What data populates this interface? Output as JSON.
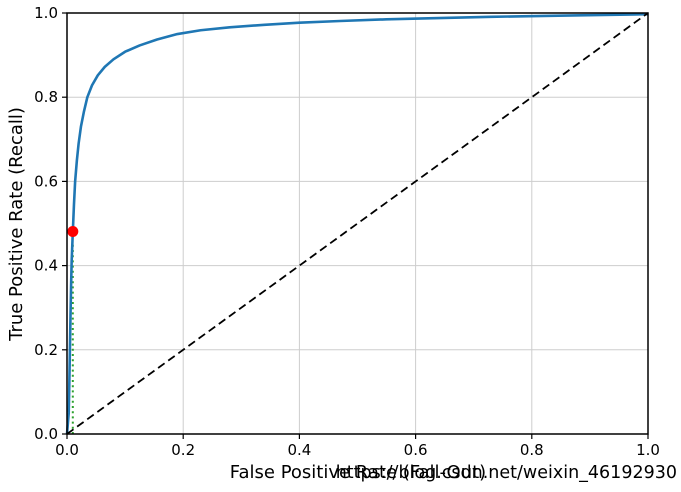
{
  "figure": {
    "background": "#ffffff",
    "watermark": {
      "text": "https://blog.csdn.net/weixin_46192930",
      "color": "#dedede"
    }
  },
  "chart_data": {
    "type": "line",
    "title": "",
    "xlabel": "False Positive Rate (Fall-Out)",
    "ylabel": "True Positive Rate (Recall)",
    "xlim": [
      0.0,
      1.0
    ],
    "ylim": [
      0.0,
      1.0
    ],
    "grid": true,
    "grid_color": "#cdcdcd",
    "spine_color": "#000000",
    "legend": "none",
    "xticks": {
      "values": [
        0.0,
        0.2,
        0.4,
        0.6,
        0.8,
        1.0
      ],
      "labels": [
        "0.0",
        "0.2",
        "0.4",
        "0.6",
        "0.8",
        "1.0"
      ]
    },
    "yticks": {
      "values": [
        0.0,
        0.2,
        0.4,
        0.6,
        0.8,
        1.0
      ],
      "labels": [
        "0.0",
        "0.2",
        "0.4",
        "0.6",
        "0.8",
        "1.0"
      ]
    },
    "series": [
      {
        "name": "threshold-vline",
        "label": "threshold vertical line",
        "color": "#2ca02c",
        "width": 2,
        "dash": "2 3.2",
        "points": [
          [
            0.01,
            0.0
          ],
          [
            0.01,
            0.455
          ]
        ]
      },
      {
        "name": "roc-curve",
        "label": "ROC curve",
        "color": "#1f77b4",
        "width": 2.6,
        "dash": null,
        "points": [
          [
            0.0,
            0.0
          ],
          [
            0.003,
            0.05
          ],
          [
            0.004,
            0.12
          ],
          [
            0.005,
            0.2
          ],
          [
            0.006,
            0.28
          ],
          [
            0.007,
            0.35
          ],
          [
            0.008,
            0.41
          ],
          [
            0.01,
            0.48
          ],
          [
            0.012,
            0.545
          ],
          [
            0.014,
            0.6
          ],
          [
            0.017,
            0.65
          ],
          [
            0.02,
            0.69
          ],
          [
            0.024,
            0.73
          ],
          [
            0.029,
            0.765
          ],
          [
            0.035,
            0.8
          ],
          [
            0.043,
            0.828
          ],
          [
            0.053,
            0.852
          ],
          [
            0.065,
            0.872
          ],
          [
            0.08,
            0.89
          ],
          [
            0.1,
            0.908
          ],
          [
            0.125,
            0.923
          ],
          [
            0.155,
            0.937
          ],
          [
            0.19,
            0.95
          ],
          [
            0.23,
            0.959
          ],
          [
            0.28,
            0.966
          ],
          [
            0.34,
            0.972
          ],
          [
            0.4,
            0.977
          ],
          [
            0.47,
            0.981
          ],
          [
            0.55,
            0.985
          ],
          [
            0.64,
            0.988
          ],
          [
            0.73,
            0.991
          ],
          [
            0.82,
            0.993
          ],
          [
            0.91,
            0.995
          ],
          [
            1.0,
            0.997
          ]
        ]
      },
      {
        "name": "random-chance-diagonal",
        "label": "random chance diagonal",
        "color": "#000000",
        "width": 1.8,
        "dash": "8 4.5",
        "points": [
          [
            0.0,
            0.0
          ],
          [
            1.0,
            1.0
          ]
        ]
      }
    ],
    "marker": {
      "name": "operating-point",
      "color": "#fe0000",
      "x": 0.01,
      "y": 0.481,
      "radius": 5.5
    }
  }
}
